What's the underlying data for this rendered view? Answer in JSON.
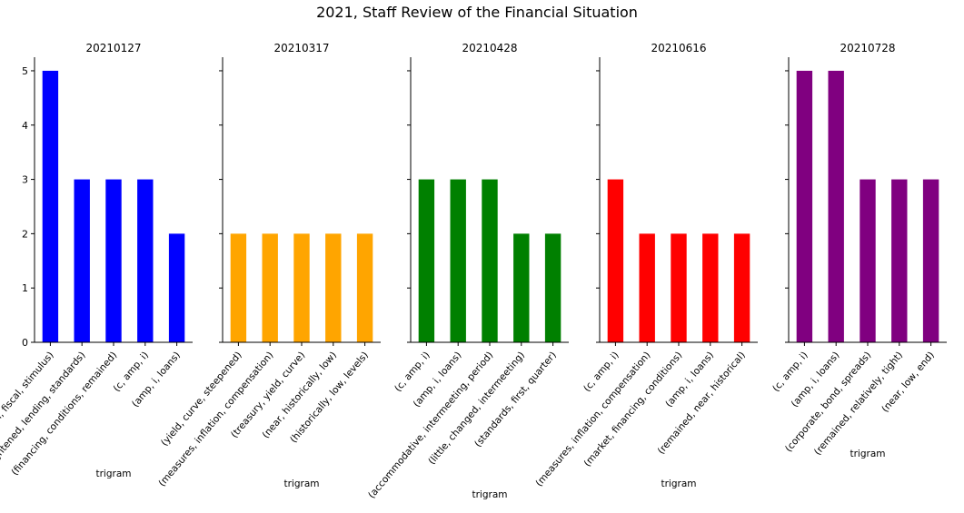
{
  "chart_data": {
    "suptitle": "2021, Staff Review of the Financial Situation",
    "type": "bar",
    "ylim": [
      0,
      5.25
    ],
    "yticks": [
      0,
      1,
      2,
      3,
      4,
      5
    ],
    "panels": [
      {
        "title": "20210127",
        "color": "#0000ff",
        "xlabel": "trigram",
        "categories": [
          "(additional, fiscal, stimulus)",
          "(tightened, lending, standards)",
          "(financing, conditions, remained)",
          "(c, amp, i)",
          "(amp, i, loans)"
        ],
        "values": [
          5,
          3,
          3,
          3,
          2
        ]
      },
      {
        "title": "20210317",
        "color": "#ffa500",
        "xlabel": "trigram",
        "categories": [
          "(yield, curve, steepened)",
          "(measures, inflation, compensation)",
          "(treasury, yield, curve)",
          "(near, historically, low)",
          "(historically, low, levels)"
        ],
        "values": [
          2,
          2,
          2,
          2,
          2
        ]
      },
      {
        "title": "20210428",
        "color": "#008000",
        "xlabel": "trigram",
        "categories": [
          "(c, amp, i)",
          "(amp, i, loans)",
          "(accommodative, intermeeting, period)",
          "(little, changed, intermeeting)",
          "(standards, first, quarter)"
        ],
        "values": [
          3,
          3,
          3,
          2,
          2
        ]
      },
      {
        "title": "20210616",
        "color": "#ff0000",
        "xlabel": "trigram",
        "categories": [
          "(c, amp, i)",
          "(measures, inflation, compensation)",
          "(market, financing, conditions)",
          "(amp, i, loans)",
          "(remained, near, historical)"
        ],
        "values": [
          3,
          2,
          2,
          2,
          2
        ]
      },
      {
        "title": "20210728",
        "color": "#800080",
        "xlabel": "trigram",
        "categories": [
          "(c, amp, i)",
          "(amp, i, loans)",
          "(corporate, bond, spreads)",
          "(remained, relatively, tight)",
          "(near, low, end)"
        ],
        "values": [
          5,
          5,
          3,
          3,
          3
        ]
      }
    ]
  }
}
